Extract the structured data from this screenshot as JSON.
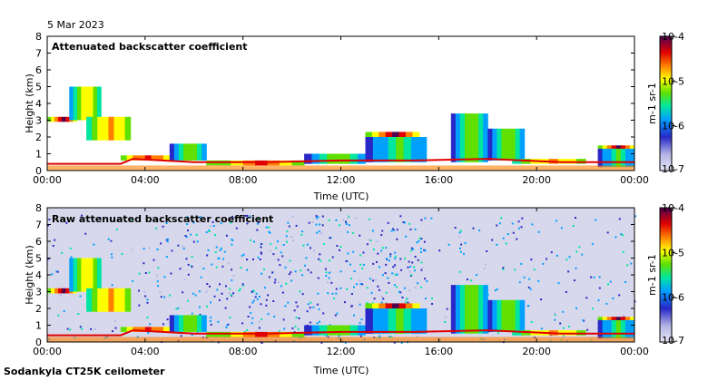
{
  "header": {
    "date": "5 Mar 2023"
  },
  "footer": {
    "instrument": "Sodankyla CT25K ceilometer"
  },
  "chart_data": [
    {
      "type": "heatmap",
      "title": "Attenuated backscatter coefficient",
      "xlabel": "Time (UTC)",
      "ylabel": "Height (km)",
      "xlim": [
        0,
        24
      ],
      "ylim": [
        0,
        8
      ],
      "x_ticks": [
        "00:00",
        "04:00",
        "08:00",
        "12:00",
        "16:00",
        "20:00",
        "00:00"
      ],
      "y_ticks": [
        "0",
        "1",
        "2",
        "3",
        "4",
        "5",
        "6",
        "7",
        "8"
      ],
      "colorbar": {
        "label": "m-1 sr-1",
        "ticks": [
          "10-7",
          "10-6",
          "10-5",
          "10-4"
        ],
        "min_exp": -7,
        "max_exp": -4
      },
      "noise_background": false
    },
    {
      "type": "heatmap",
      "title": "Raw attenuated backscatter coefficient",
      "xlabel": "Time (UTC)",
      "ylabel": "Height (km)",
      "xlim": [
        0,
        24
      ],
      "ylim": [
        0,
        8
      ],
      "x_ticks": [
        "00:00",
        "04:00",
        "08:00",
        "12:00",
        "16:00",
        "20:00",
        "00:00"
      ],
      "y_ticks": [
        "0",
        "1",
        "2",
        "3",
        "4",
        "5",
        "6",
        "7",
        "8"
      ],
      "colorbar": {
        "label": "m-1 sr-1",
        "ticks": [
          "10-7",
          "10-6",
          "10-5",
          "10-4"
        ],
        "min_exp": -7,
        "max_exp": -4
      },
      "noise_background": true
    }
  ],
  "features": {
    "surface_layer": [
      [
        0,
        0.4
      ],
      [
        3,
        0.4
      ],
      [
        3.5,
        0.7
      ],
      [
        6,
        0.5
      ],
      [
        9,
        0.5
      ],
      [
        12,
        0.6
      ],
      [
        15,
        0.6
      ],
      [
        18,
        0.7
      ],
      [
        21,
        0.5
      ],
      [
        24,
        0.5
      ]
    ],
    "cloud_layers": [
      {
        "t0": 0.0,
        "t1": 1.2,
        "h0": 2.9,
        "h1": 3.2,
        "level": 0.95
      },
      {
        "t0": 0.9,
        "t1": 2.2,
        "h0": 3.0,
        "h1": 5.0,
        "level": 0.7
      },
      {
        "t0": 1.6,
        "t1": 3.4,
        "h0": 1.8,
        "h1": 3.2,
        "level": 0.8
      },
      {
        "t0": 3.0,
        "t1": 5.0,
        "h0": 0.6,
        "h1": 0.9,
        "level": 0.9
      },
      {
        "t0": 5.0,
        "t1": 6.5,
        "h0": 0.6,
        "h1": 1.6,
        "level": 0.6
      },
      {
        "t0": 6.5,
        "t1": 10.5,
        "h0": 0.3,
        "h1": 0.6,
        "level": 0.85
      },
      {
        "t0": 10.5,
        "t1": 13.0,
        "h0": 0.4,
        "h1": 1.0,
        "level": 0.6
      },
      {
        "t0": 13.0,
        "t1": 15.2,
        "h0": 2.0,
        "h1": 2.3,
        "level": 0.95
      },
      {
        "t0": 13.0,
        "t1": 15.5,
        "h0": 0.5,
        "h1": 2.0,
        "level": 0.55
      },
      {
        "t0": 16.5,
        "t1": 18.0,
        "h0": 0.5,
        "h1": 3.4,
        "level": 0.6
      },
      {
        "t0": 18.0,
        "t1": 19.5,
        "h0": 0.6,
        "h1": 2.5,
        "level": 0.6
      },
      {
        "t0": 19.0,
        "t1": 22.0,
        "h0": 0.4,
        "h1": 0.7,
        "level": 0.8
      },
      {
        "t0": 22.5,
        "t1": 24.0,
        "h0": 1.3,
        "h1": 1.5,
        "level": 0.95
      },
      {
        "t0": 22.5,
        "t1": 24.0,
        "h0": 0.2,
        "h1": 1.3,
        "level": 0.55
      }
    ]
  }
}
